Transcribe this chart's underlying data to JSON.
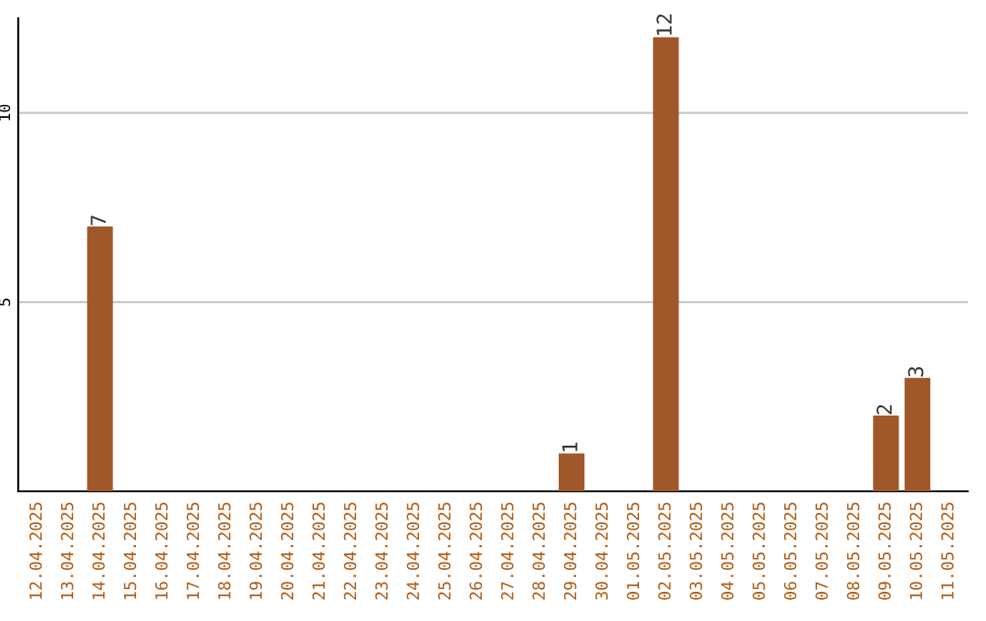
{
  "chart_data": {
    "type": "bar",
    "categories": [
      "12.04.2025",
      "13.04.2025",
      "14.04.2025",
      "15.04.2025",
      "16.04.2025",
      "17.04.2025",
      "18.04.2025",
      "19.04.2025",
      "20.04.2025",
      "21.04.2025",
      "22.04.2025",
      "23.04.2025",
      "24.04.2025",
      "25.04.2025",
      "26.04.2025",
      "27.04.2025",
      "28.04.2025",
      "29.04.2025",
      "30.04.2025",
      "01.05.2025",
      "02.05.2025",
      "03.05.2025",
      "04.05.2025",
      "05.05.2025",
      "06.05.2025",
      "07.05.2025",
      "08.05.2025",
      "09.05.2025",
      "10.05.2025",
      "11.05.2025"
    ],
    "values": [
      0,
      0,
      7,
      0,
      0,
      0,
      0,
      0,
      0,
      0,
      0,
      0,
      0,
      0,
      0,
      0,
      0,
      1,
      0,
      0,
      12,
      0,
      0,
      0,
      0,
      0,
      0,
      2,
      3,
      0
    ],
    "value_labels": [
      null,
      null,
      "7",
      null,
      null,
      null,
      null,
      null,
      null,
      null,
      null,
      null,
      null,
      null,
      null,
      null,
      null,
      "1",
      null,
      null,
      "12",
      null,
      null,
      null,
      null,
      null,
      null,
      "2",
      "3",
      null
    ],
    "color": "#a0582a",
    "ylim": [
      0,
      12.5
    ],
    "yticks": [
      5,
      10
    ],
    "grid": "y"
  }
}
